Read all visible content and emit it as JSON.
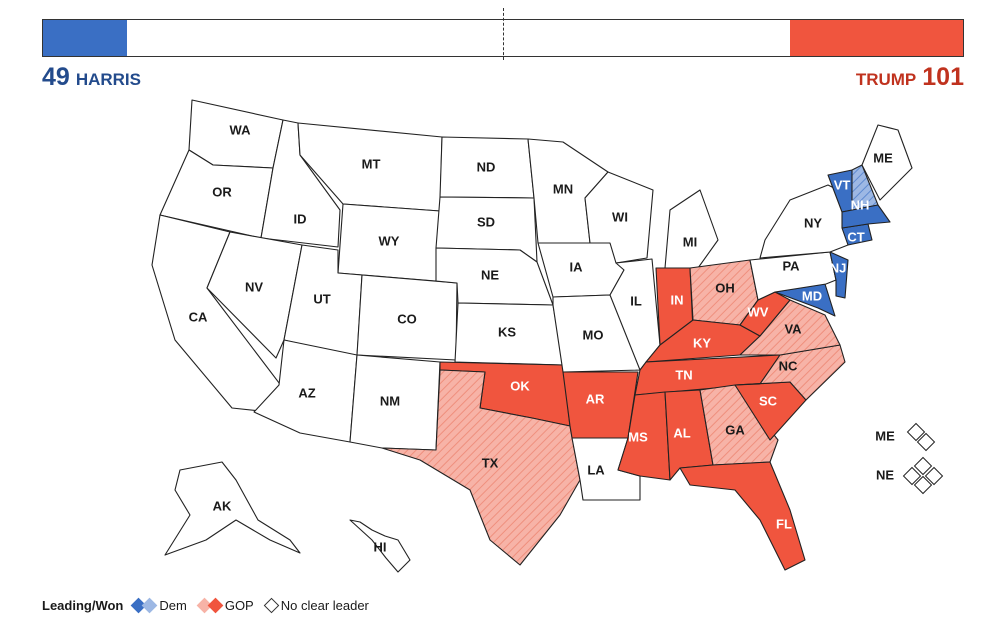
{
  "header": {
    "dem_votes": "49",
    "dem_name": "HARRIS",
    "gop_votes": "101",
    "gop_name": "TRUMP",
    "dem_fraction": 0.091,
    "gop_fraction": 0.188
  },
  "colors": {
    "dem": "#3a6fc4",
    "dem_lean": "#9db8e4",
    "gop": "#f0553e",
    "gop_lean": "#f7b3a7",
    "none": "#ffffff"
  },
  "states": {
    "WA": "WA",
    "OR": "OR",
    "CA": "CA",
    "ID": "ID",
    "NV": "NV",
    "MT": "MT",
    "WY": "WY",
    "UT": "UT",
    "AZ": "AZ",
    "CO": "CO",
    "NM": "NM",
    "ND": "ND",
    "SD": "SD",
    "NE": "NE",
    "KS": "KS",
    "OK": "OK",
    "TX": "TX",
    "MN": "MN",
    "IA": "IA",
    "MO": "MO",
    "AR": "AR",
    "LA": "LA",
    "WI": "WI",
    "IL": "IL",
    "MI": "MI",
    "IN": "IN",
    "OH": "OH",
    "KY": "KY",
    "TN": "TN",
    "MS": "MS",
    "AL": "AL",
    "GA": "GA",
    "FL": "FL",
    "SC": "SC",
    "NC": "NC",
    "VA": "VA",
    "WV": "WV",
    "MD": "MD",
    "PA": "PA",
    "NY": "NY",
    "NJ": "NJ",
    "CT": "CT",
    "VT": "VT",
    "NH": "NH",
    "ME": "ME",
    "AK": "AK",
    "HI": "HI"
  },
  "districts": {
    "me": "ME",
    "ne": "NE"
  },
  "legend": {
    "title": "Leading/Won",
    "dem": "Dem",
    "gop": "GOP",
    "none": "No clear leader"
  }
}
